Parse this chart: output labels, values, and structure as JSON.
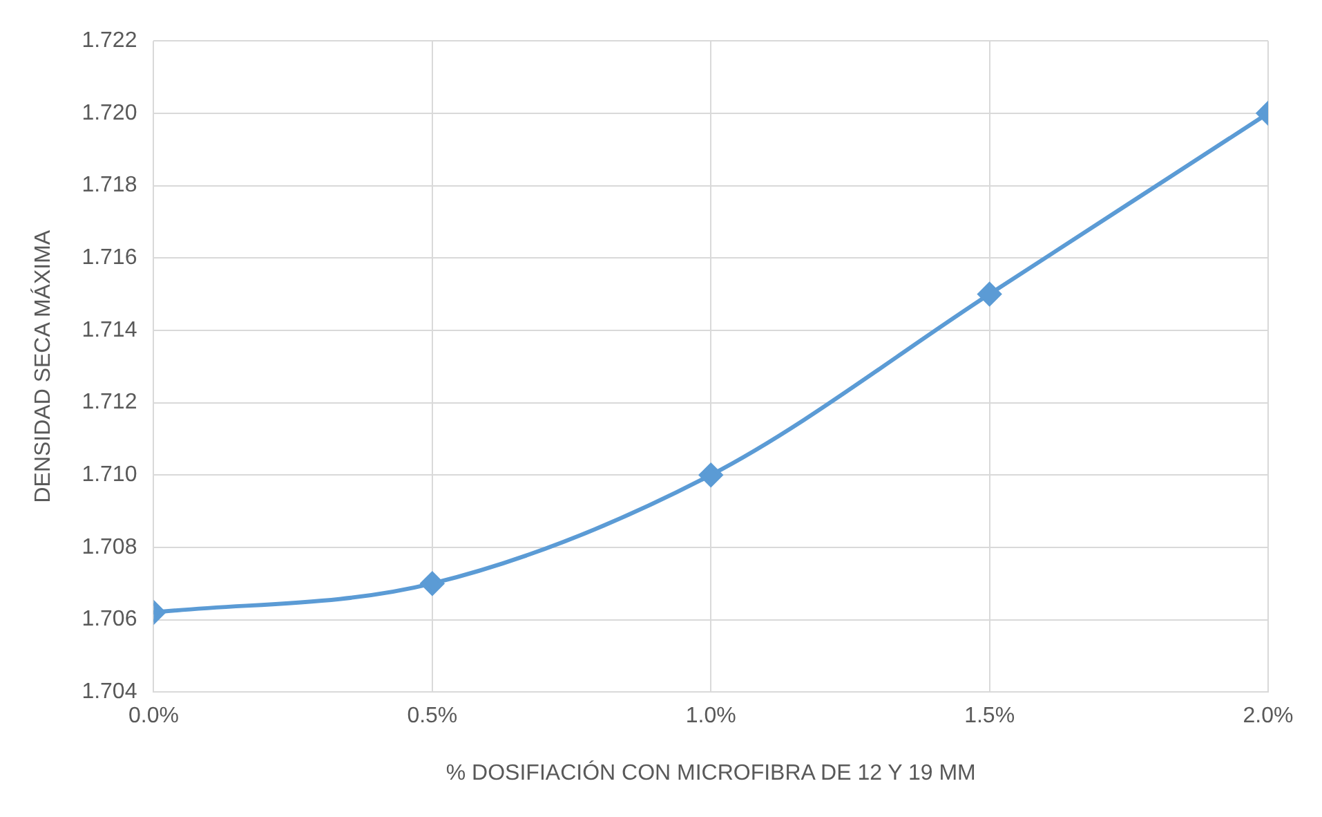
{
  "chart_data": {
    "type": "line",
    "xlabel": "% DOSIFIACIÓN CON MICROFIBRA DE 12 Y 19 MM",
    "ylabel": "DENSIDAD SECA MÁXIMA",
    "x": [
      0,
      0.5,
      1,
      1.5,
      2
    ],
    "series": [
      {
        "color": "#5b9bd5",
        "values": [
          1.7062,
          1.707,
          1.71,
          1.715,
          1.72
        ]
      }
    ],
    "xlim": [
      0,
      2
    ],
    "xticks": [
      {
        "value": 0,
        "label": "0.0%"
      },
      {
        "value": 0.5,
        "label": "0.5%"
      },
      {
        "value": 1,
        "label": "1.0%"
      },
      {
        "value": 1.5,
        "label": "1.5%"
      },
      {
        "value": 2,
        "label": "2.0%"
      }
    ],
    "ylim": [
      1.704,
      1.722
    ],
    "yticks": [
      {
        "value": 1.704,
        "label": "1.704"
      },
      {
        "value": 1.706,
        "label": "1.706"
      },
      {
        "value": 1.708,
        "label": "1.708"
      },
      {
        "value": 1.71,
        "label": "1.710"
      },
      {
        "value": 1.712,
        "label": "1.712"
      },
      {
        "value": 1.714,
        "label": "1.714"
      },
      {
        "value": 1.716,
        "label": "1.716"
      },
      {
        "value": 1.718,
        "label": "1.718"
      },
      {
        "value": 1.72,
        "label": "1.720"
      },
      {
        "value": 1.722,
        "label": "1.722"
      }
    ],
    "grid": true,
    "legend": false,
    "marker": "diamond",
    "line_style": "solid"
  }
}
